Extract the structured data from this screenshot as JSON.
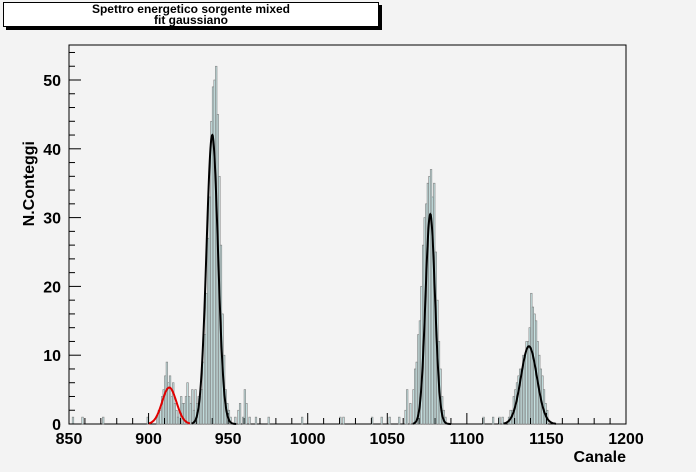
{
  "chart_data": {
    "type": "bar",
    "title": [
      "Spettro energetico sorgente mixed",
      "fit gaussiano"
    ],
    "xlabel": "Canale",
    "ylabel": "N.Conteggi",
    "xlim": [
      850,
      1200
    ],
    "ylim": [
      0,
      55
    ],
    "x_ticks": [
      850,
      900,
      950,
      1000,
      1050,
      1100,
      1150,
      1200
    ],
    "y_ticks": [
      0,
      10,
      20,
      30,
      40,
      50
    ],
    "grid": false,
    "colors": {
      "background": "#f3f3f3",
      "frame_fill": "#f3f3f3",
      "histogram_fill": "#c5e2e2",
      "histogram_line": "#7f7f7f",
      "fit_red": "#e00000",
      "fit_black": "#000000"
    },
    "histogram": {
      "bin_width": 1,
      "bins": [
        [
          852,
          1
        ],
        [
          858,
          1
        ],
        [
          871,
          1
        ],
        [
          899,
          1
        ],
        [
          905,
          1
        ],
        [
          906,
          2
        ],
        [
          907,
          2
        ],
        [
          908,
          4
        ],
        [
          909,
          5
        ],
        [
          910,
          7
        ],
        [
          911,
          9
        ],
        [
          912,
          6
        ],
        [
          913,
          7
        ],
        [
          914,
          4
        ],
        [
          915,
          6
        ],
        [
          916,
          3
        ],
        [
          917,
          2
        ],
        [
          918,
          1
        ],
        [
          919,
          2
        ],
        [
          920,
          4
        ],
        [
          921,
          3
        ],
        [
          922,
          3
        ],
        [
          923,
          4
        ],
        [
          924,
          6
        ],
        [
          925,
          4
        ],
        [
          926,
          3
        ],
        [
          927,
          5
        ],
        [
          928,
          2
        ],
        [
          929,
          5
        ],
        [
          930,
          3
        ],
        [
          931,
          4
        ],
        [
          932,
          4
        ],
        [
          933,
          5
        ],
        [
          934,
          9
        ],
        [
          935,
          13
        ],
        [
          936,
          19
        ],
        [
          937,
          27
        ],
        [
          938,
          33
        ],
        [
          939,
          44
        ],
        [
          940,
          49
        ],
        [
          941,
          50
        ],
        [
          942,
          52
        ],
        [
          943,
          45
        ],
        [
          944,
          36
        ],
        [
          945,
          26
        ],
        [
          946,
          16
        ],
        [
          947,
          10
        ],
        [
          948,
          5
        ],
        [
          949,
          3
        ],
        [
          950,
          2
        ],
        [
          951,
          1
        ],
        [
          954,
          1
        ],
        [
          956,
          2
        ],
        [
          957,
          3
        ],
        [
          959,
          1
        ],
        [
          960,
          5
        ],
        [
          961,
          3
        ],
        [
          963,
          1
        ],
        [
          967,
          1
        ],
        [
          975,
          1
        ],
        [
          996,
          1
        ],
        [
          1020,
          1
        ],
        [
          1022,
          1
        ],
        [
          1040,
          1
        ],
        [
          1046,
          1
        ],
        [
          1051,
          1
        ],
        [
          1057,
          1
        ],
        [
          1061,
          2
        ],
        [
          1062,
          5
        ],
        [
          1064,
          3
        ],
        [
          1066,
          5
        ],
        [
          1067,
          8
        ],
        [
          1068,
          9
        ],
        [
          1069,
          13
        ],
        [
          1070,
          15
        ],
        [
          1071,
          20
        ],
        [
          1072,
          26
        ],
        [
          1073,
          30
        ],
        [
          1074,
          32
        ],
        [
          1075,
          35
        ],
        [
          1076,
          36
        ],
        [
          1077,
          37
        ],
        [
          1078,
          33
        ],
        [
          1079,
          35
        ],
        [
          1080,
          25
        ],
        [
          1081,
          18
        ],
        [
          1082,
          12
        ],
        [
          1083,
          8
        ],
        [
          1084,
          4
        ],
        [
          1085,
          2
        ],
        [
          1086,
          1
        ],
        [
          1110,
          1
        ],
        [
          1116,
          1
        ],
        [
          1120,
          1
        ],
        [
          1122,
          1
        ],
        [
          1126,
          1
        ],
        [
          1127,
          2
        ],
        [
          1128,
          2
        ],
        [
          1129,
          4
        ],
        [
          1130,
          5
        ],
        [
          1131,
          6
        ],
        [
          1132,
          7
        ],
        [
          1133,
          8
        ],
        [
          1134,
          8
        ],
        [
          1135,
          10
        ],
        [
          1136,
          10
        ],
        [
          1137,
          12
        ],
        [
          1138,
          12
        ],
        [
          1139,
          14
        ],
        [
          1140,
          19
        ],
        [
          1141,
          17
        ],
        [
          1142,
          16
        ],
        [
          1143,
          15
        ],
        [
          1144,
          12
        ],
        [
          1145,
          10
        ],
        [
          1146,
          8
        ],
        [
          1147,
          7
        ],
        [
          1148,
          5
        ],
        [
          1149,
          3
        ],
        [
          1150,
          2
        ]
      ]
    },
    "fits": [
      {
        "amplitude": 5.3,
        "mean": 913,
        "sigma": 4.5,
        "range": [
          900,
          926
        ],
        "color": "#e00000"
      },
      {
        "amplitude": 42,
        "mean": 940,
        "sigma": 3.6,
        "range": [
          927,
          955
        ],
        "color": "#000000"
      },
      {
        "amplitude": 30.5,
        "mean": 1077,
        "sigma": 3.0,
        "range": [
          1066,
          1090
        ],
        "color": "#000000"
      },
      {
        "amplitude": 11.3,
        "mean": 1139,
        "sigma": 5.0,
        "range": [
          1123,
          1156
        ],
        "color": "#000000"
      }
    ]
  }
}
